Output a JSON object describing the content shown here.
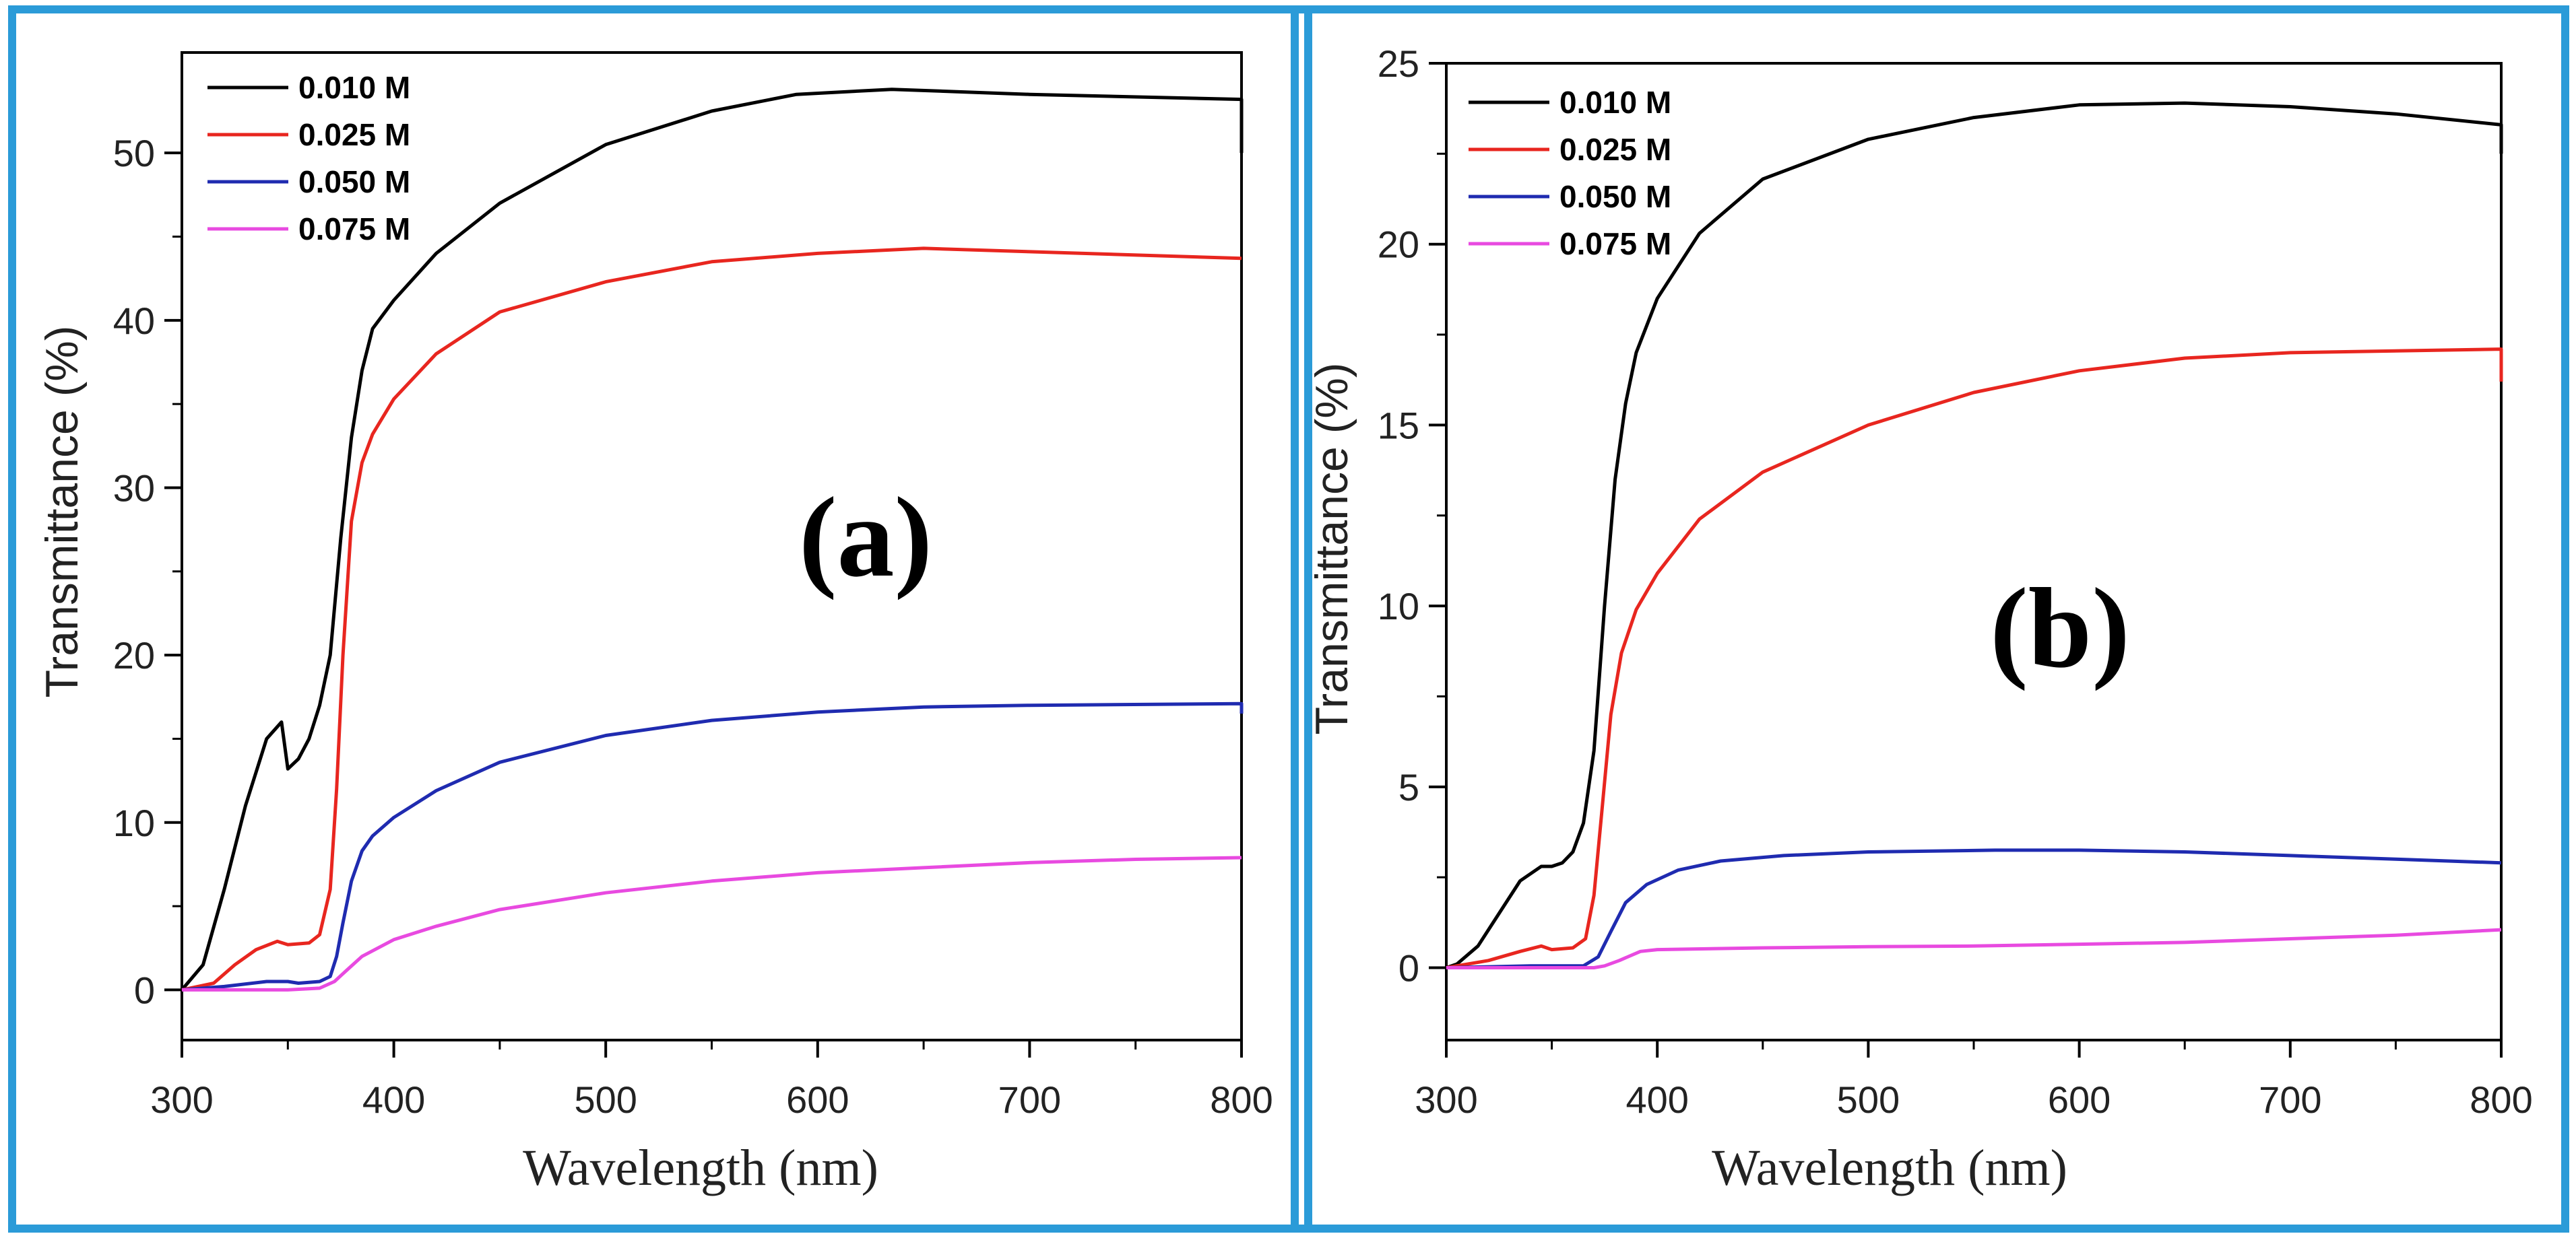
{
  "frame_color": "#2b9bd8",
  "chart_data": [
    {
      "type": "line",
      "panel_label": "(a)",
      "xlabel": "Wavelength (nm)",
      "ylabel": "Transmittance (%)",
      "xlim": [
        300,
        800
      ],
      "ylim": [
        -3,
        56
      ],
      "xticks": [
        300,
        400,
        500,
        600,
        700,
        800
      ],
      "xtick_labels": [
        "300",
        "400",
        "500",
        "600",
        "700",
        "800"
      ],
      "yticks": [
        0,
        10,
        20,
        30,
        40,
        50
      ],
      "ytick_labels": [
        "0",
        "10",
        "20",
        "30",
        "40",
        "50"
      ],
      "legend_position": "top-left",
      "series": [
        {
          "name": "0.010 M",
          "color": "#000000",
          "points": [
            [
              300,
              0
            ],
            [
              310,
              1.5
            ],
            [
              320,
              6
            ],
            [
              330,
              11
            ],
            [
              340,
              15
            ],
            [
              347,
              16
            ],
            [
              350,
              13.2
            ],
            [
              355,
              13.8
            ],
            [
              360,
              15
            ],
            [
              365,
              17
            ],
            [
              370,
              20
            ],
            [
              375,
              27
            ],
            [
              380,
              33
            ],
            [
              385,
              37
            ],
            [
              390,
              39.5
            ],
            [
              400,
              41.2
            ],
            [
              420,
              44
            ],
            [
              450,
              47
            ],
            [
              500,
              50.5
            ],
            [
              550,
              52.5
            ],
            [
              590,
              53.5
            ],
            [
              635,
              53.8
            ],
            [
              700,
              53.5
            ],
            [
              800,
              53.2
            ],
            [
              800,
              50
            ]
          ]
        },
        {
          "name": "0.025 M",
          "color": "#e8261f",
          "points": [
            [
              300,
              0
            ],
            [
              315,
              0.4
            ],
            [
              325,
              1.5
            ],
            [
              335,
              2.4
            ],
            [
              345,
              2.9
            ],
            [
              350,
              2.7
            ],
            [
              360,
              2.8
            ],
            [
              365,
              3.3
            ],
            [
              370,
              6
            ],
            [
              373,
              12
            ],
            [
              376,
              20
            ],
            [
              380,
              28
            ],
            [
              385,
              31.5
            ],
            [
              390,
              33.2
            ],
            [
              400,
              35.3
            ],
            [
              420,
              38
            ],
            [
              450,
              40.5
            ],
            [
              500,
              42.3
            ],
            [
              550,
              43.5
            ],
            [
              600,
              44
            ],
            [
              650,
              44.3
            ],
            [
              700,
              44.1
            ],
            [
              800,
              43.7
            ]
          ]
        },
        {
          "name": "0.050 M",
          "color": "#1f2bb0",
          "points": [
            [
              300,
              0
            ],
            [
              320,
              0.2
            ],
            [
              340,
              0.5
            ],
            [
              350,
              0.5
            ],
            [
              355,
              0.4
            ],
            [
              365,
              0.5
            ],
            [
              370,
              0.8
            ],
            [
              373,
              2
            ],
            [
              376,
              4
            ],
            [
              380,
              6.5
            ],
            [
              385,
              8.3
            ],
            [
              390,
              9.2
            ],
            [
              400,
              10.3
            ],
            [
              420,
              11.9
            ],
            [
              450,
              13.6
            ],
            [
              500,
              15.2
            ],
            [
              550,
              16.1
            ],
            [
              600,
              16.6
            ],
            [
              650,
              16.9
            ],
            [
              700,
              17
            ],
            [
              800,
              17.1
            ],
            [
              800,
              16.5
            ]
          ]
        },
        {
          "name": "0.075 M",
          "color": "#e84ae0",
          "points": [
            [
              300,
              0
            ],
            [
              330,
              0
            ],
            [
              350,
              0
            ],
            [
              365,
              0.1
            ],
            [
              372,
              0.5
            ],
            [
              378,
              1.2
            ],
            [
              385,
              2
            ],
            [
              400,
              3
            ],
            [
              420,
              3.8
            ],
            [
              450,
              4.8
            ],
            [
              500,
              5.8
            ],
            [
              550,
              6.5
            ],
            [
              600,
              7
            ],
            [
              650,
              7.3
            ],
            [
              700,
              7.6
            ],
            [
              750,
              7.8
            ],
            [
              800,
              7.9
            ]
          ]
        }
      ]
    },
    {
      "type": "line",
      "panel_label": "(b)",
      "xlabel": "Wavelength (nm)",
      "ylabel": "Transmittance (%)",
      "xlim": [
        300,
        800
      ],
      "ylim": [
        -2,
        25
      ],
      "xticks": [
        300,
        400,
        500,
        600,
        700,
        800
      ],
      "xtick_labels": [
        "300",
        "400",
        "500",
        "600",
        "700",
        "800"
      ],
      "yticks": [
        0,
        5,
        10,
        15,
        20,
        25
      ],
      "ytick_labels": [
        "0",
        "5",
        "10",
        "15",
        "20",
        "25"
      ],
      "legend_position": "top-left",
      "series": [
        {
          "name": "0.010 M",
          "color": "#000000",
          "points": [
            [
              300,
              0
            ],
            [
              305,
              0.1
            ],
            [
              315,
              0.6
            ],
            [
              325,
              1.5
            ],
            [
              335,
              2.4
            ],
            [
              345,
              2.8
            ],
            [
              350,
              2.8
            ],
            [
              355,
              2.9
            ],
            [
              360,
              3.2
            ],
            [
              365,
              4
            ],
            [
              370,
              6
            ],
            [
              375,
              10
            ],
            [
              380,
              13.5
            ],
            [
              385,
              15.6
            ],
            [
              390,
              17
            ],
            [
              400,
              18.5
            ],
            [
              420,
              20.3
            ],
            [
              450,
              21.8
            ],
            [
              500,
              22.9
            ],
            [
              550,
              23.5
            ],
            [
              600,
              23.85
            ],
            [
              650,
              23.9
            ],
            [
              700,
              23.8
            ],
            [
              750,
              23.6
            ],
            [
              800,
              23.3
            ],
            [
              800,
              22.5
            ]
          ]
        },
        {
          "name": "0.025 M",
          "color": "#e8261f",
          "points": [
            [
              300,
              0
            ],
            [
              320,
              0.2
            ],
            [
              335,
              0.45
            ],
            [
              345,
              0.6
            ],
            [
              350,
              0.5
            ],
            [
              360,
              0.55
            ],
            [
              366,
              0.8
            ],
            [
              370,
              2
            ],
            [
              374,
              4.5
            ],
            [
              378,
              7
            ],
            [
              383,
              8.7
            ],
            [
              390,
              9.9
            ],
            [
              400,
              10.9
            ],
            [
              420,
              12.4
            ],
            [
              450,
              13.7
            ],
            [
              500,
              15
            ],
            [
              550,
              15.9
            ],
            [
              600,
              16.5
            ],
            [
              650,
              16.85
            ],
            [
              700,
              17
            ],
            [
              800,
              17.1
            ],
            [
              800,
              16.2
            ]
          ]
        },
        {
          "name": "0.050 M",
          "color": "#1f2bb0",
          "points": [
            [
              300,
              0
            ],
            [
              340,
              0.05
            ],
            [
              365,
              0.05
            ],
            [
              372,
              0.3
            ],
            [
              378,
              1
            ],
            [
              385,
              1.8
            ],
            [
              395,
              2.3
            ],
            [
              410,
              2.7
            ],
            [
              430,
              2.95
            ],
            [
              460,
              3.1
            ],
            [
              500,
              3.2
            ],
            [
              560,
              3.25
            ],
            [
              600,
              3.25
            ],
            [
              650,
              3.2
            ],
            [
              700,
              3.1
            ],
            [
              750,
              3
            ],
            [
              800,
              2.9
            ]
          ]
        },
        {
          "name": "0.075 M",
          "color": "#e84ae0",
          "points": [
            [
              300,
              0
            ],
            [
              370,
              0
            ],
            [
              375,
              0.05
            ],
            [
              382,
              0.2
            ],
            [
              392,
              0.45
            ],
            [
              400,
              0.5
            ],
            [
              450,
              0.55
            ],
            [
              500,
              0.58
            ],
            [
              550,
              0.6
            ],
            [
              600,
              0.65
            ],
            [
              650,
              0.7
            ],
            [
              700,
              0.8
            ],
            [
              750,
              0.9
            ],
            [
              800,
              1.05
            ]
          ]
        }
      ]
    }
  ]
}
